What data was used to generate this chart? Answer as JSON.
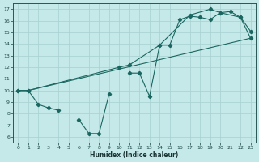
{
  "xlabel": "Humidex (Indice chaleur)",
  "xlim": [
    -0.5,
    23.5
  ],
  "ylim": [
    5.5,
    17.5
  ],
  "xticks": [
    0,
    1,
    2,
    3,
    4,
    5,
    6,
    7,
    8,
    9,
    10,
    11,
    12,
    13,
    14,
    15,
    16,
    17,
    18,
    19,
    20,
    21,
    22,
    23
  ],
  "yticks": [
    6,
    7,
    8,
    9,
    10,
    11,
    12,
    13,
    14,
    15,
    16,
    17
  ],
  "bg_color": "#c5e8e8",
  "grid_color": "#a8d0d0",
  "line_color": "#1a6660",
  "line1_x": [
    0,
    1,
    2,
    3,
    4,
    6,
    7,
    8,
    9,
    11,
    12,
    13,
    14,
    15,
    16,
    17,
    18,
    19,
    20,
    21,
    22,
    23
  ],
  "line1_y": [
    10.0,
    10.0,
    8.8,
    8.5,
    8.3,
    7.5,
    6.3,
    6.3,
    9.7,
    11.5,
    11.5,
    9.5,
    13.9,
    13.9,
    16.1,
    16.4,
    16.3,
    16.1,
    16.7,
    16.8,
    16.3,
    15.1
  ],
  "line1_breaks": [
    4,
    9
  ],
  "line2_x": [
    0,
    1,
    10,
    11,
    14,
    17,
    19,
    20,
    22,
    23
  ],
  "line2_y": [
    10.0,
    10.0,
    12.0,
    12.2,
    13.9,
    16.5,
    17.0,
    16.7,
    16.3,
    14.5
  ],
  "line3_x": [
    0,
    1,
    23
  ],
  "line3_y": [
    10.0,
    10.0,
    14.5
  ]
}
